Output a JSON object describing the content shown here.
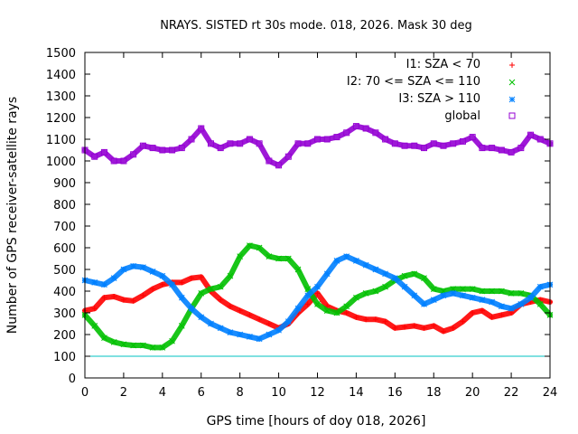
{
  "chart_data": {
    "type": "scatter",
    "title": "NRAYS. SISTED rt 30s mode. 018, 2026. Mask 30 deg",
    "xlabel": "GPS time [hours of doy 018, 2026]",
    "ylabel": "Number of GPS receiver-satellite rays",
    "xlim": [
      0,
      24
    ],
    "ylim": [
      0,
      1500
    ],
    "xticks": [
      "0",
      "2",
      "4",
      "6",
      "8",
      "10",
      "12",
      "14",
      "16",
      "18",
      "20",
      "22",
      "24"
    ],
    "yticks": [
      "0",
      "100",
      "200",
      "300",
      "400",
      "500",
      "600",
      "700",
      "800",
      "900",
      "1000",
      "1100",
      "1200",
      "1300",
      "1400",
      "1500"
    ],
    "reference_line": {
      "y": 100,
      "color": "#00c0c0"
    },
    "series": [
      {
        "name": "I1: SZA < 70",
        "color": "#ff0000",
        "marker": "+",
        "x": [
          0,
          0.5,
          1,
          1.5,
          2,
          2.5,
          3,
          3.5,
          4,
          4.5,
          5,
          5.5,
          6,
          6.5,
          7,
          7.5,
          8,
          8.5,
          9,
          9.5,
          10,
          10.5,
          11,
          11.5,
          12,
          12.5,
          13,
          13.5,
          14,
          14.5,
          15,
          15.5,
          16,
          16.5,
          17,
          17.5,
          18,
          18.5,
          19,
          19.5,
          20,
          20.5,
          21,
          21.5,
          22,
          22.5,
          23,
          23.5,
          24
        ],
        "values": [
          310,
          320,
          370,
          375,
          360,
          355,
          380,
          410,
          430,
          440,
          440,
          460,
          465,
          400,
          360,
          330,
          310,
          290,
          270,
          250,
          230,
          250,
          300,
          340,
          390,
          330,
          310,
          300,
          280,
          270,
          270,
          260,
          230,
          235,
          240,
          230,
          240,
          215,
          230,
          260,
          300,
          310,
          280,
          290,
          300,
          340,
          350,
          360,
          350
        ]
      },
      {
        "name": "I2: 70 <= SZA <= 110",
        "color": "#00c000",
        "marker": "x",
        "x": [
          0,
          0.5,
          1,
          1.5,
          2,
          2.5,
          3,
          3.5,
          4,
          4.5,
          5,
          5.5,
          6,
          6.5,
          7,
          7.5,
          8,
          8.5,
          9,
          9.5,
          10,
          10.5,
          11,
          11.5,
          12,
          12.5,
          13,
          13.5,
          14,
          14.5,
          15,
          15.5,
          16,
          16.5,
          17,
          17.5,
          18,
          18.5,
          19,
          19.5,
          20,
          20.5,
          21,
          21.5,
          22,
          22.5,
          23,
          23.5,
          24
        ],
        "values": [
          290,
          240,
          185,
          165,
          155,
          150,
          150,
          140,
          140,
          170,
          240,
          320,
          390,
          410,
          420,
          470,
          560,
          610,
          600,
          560,
          550,
          550,
          500,
          410,
          340,
          310,
          300,
          330,
          370,
          390,
          400,
          420,
          450,
          470,
          480,
          460,
          410,
          400,
          410,
          410,
          410,
          400,
          400,
          400,
          390,
          390,
          380,
          340,
          290
        ]
      },
      {
        "name": "I3: SZA > 110",
        "color": "#0080ff",
        "marker": "*",
        "x": [
          0,
          0.5,
          1,
          1.5,
          2,
          2.5,
          3,
          3.5,
          4,
          4.5,
          5,
          5.5,
          6,
          6.5,
          7,
          7.5,
          8,
          8.5,
          9,
          9.5,
          10,
          10.5,
          11,
          11.5,
          12,
          12.5,
          13,
          13.5,
          14,
          14.5,
          15,
          15.5,
          16,
          16.5,
          17,
          17.5,
          18,
          18.5,
          19,
          19.5,
          20,
          20.5,
          21,
          21.5,
          22,
          22.5,
          23,
          23.5,
          24
        ],
        "values": [
          450,
          440,
          430,
          460,
          500,
          515,
          510,
          490,
          470,
          430,
          370,
          320,
          280,
          250,
          230,
          210,
          200,
          190,
          180,
          200,
          220,
          260,
          320,
          380,
          420,
          480,
          540,
          560,
          540,
          520,
          500,
          480,
          460,
          420,
          380,
          340,
          360,
          380,
          390,
          380,
          370,
          360,
          350,
          330,
          320,
          340,
          370,
          420,
          430
        ]
      },
      {
        "name": "global",
        "color": "#9400d3",
        "marker": "square",
        "x": [
          0,
          0.5,
          1,
          1.5,
          2,
          2.5,
          3,
          3.5,
          4,
          4.5,
          5,
          5.5,
          6,
          6.5,
          7,
          7.5,
          8,
          8.5,
          9,
          9.5,
          10,
          10.5,
          11,
          11.5,
          12,
          12.5,
          13,
          13.5,
          14,
          14.5,
          15,
          15.5,
          16,
          16.5,
          17,
          17.5,
          18,
          18.5,
          19,
          19.5,
          20,
          20.5,
          21,
          21.5,
          22,
          22.5,
          23,
          23.5,
          24
        ],
        "values": [
          1050,
          1020,
          1040,
          1000,
          1000,
          1030,
          1070,
          1060,
          1050,
          1050,
          1060,
          1100,
          1150,
          1080,
          1060,
          1080,
          1080,
          1100,
          1080,
          1000,
          980,
          1020,
          1080,
          1080,
          1100,
          1100,
          1110,
          1130,
          1160,
          1150,
          1130,
          1100,
          1080,
          1070,
          1070,
          1060,
          1080,
          1070,
          1080,
          1090,
          1110,
          1060,
          1060,
          1050,
          1040,
          1060,
          1120,
          1100,
          1080
        ]
      }
    ],
    "legend_position": "top-right"
  }
}
